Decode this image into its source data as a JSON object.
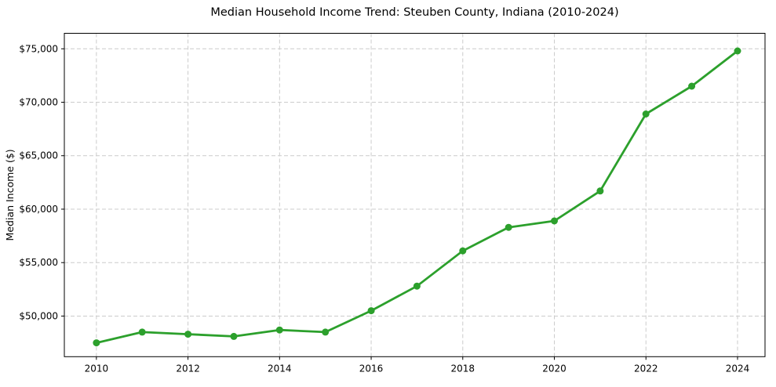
{
  "chart_data": {
    "type": "line",
    "title": "Median Household Income Trend: Steuben County, Indiana (2010-2024)",
    "xlabel": "",
    "ylabel": "Median Income ($)",
    "series": [
      {
        "name": "Median household income",
        "x": [
          2010,
          2011,
          2012,
          2013,
          2014,
          2015,
          2016,
          2017,
          2018,
          2019,
          2020,
          2021,
          2022,
          2023,
          2024
        ],
        "values": [
          47500,
          48500,
          48300,
          48100,
          48700,
          48500,
          50500,
          52800,
          56100,
          58300,
          58900,
          61700,
          68900,
          71500,
          74800
        ]
      }
    ],
    "line_color": "#2ca02c",
    "marker": "circle",
    "marker_color": "#2ca02c",
    "grid": true,
    "grid_style": "dashed",
    "grid_color": "#cccccc",
    "legend": false,
    "xlim": [
      2009.3,
      2024.6
    ],
    "ylim": [
      46200,
      76450
    ],
    "xticks": [
      2010,
      2012,
      2014,
      2016,
      2018,
      2020,
      2022,
      2024
    ],
    "xtick_labels": [
      "2010",
      "2012",
      "2014",
      "2016",
      "2018",
      "2020",
      "2022",
      "2024"
    ],
    "yticks": [
      50000,
      55000,
      60000,
      65000,
      70000,
      75000
    ],
    "ytick_labels": [
      "$50,000",
      "$55,000",
      "$60,000",
      "$65,000",
      "$70,000",
      "$75,000"
    ]
  }
}
